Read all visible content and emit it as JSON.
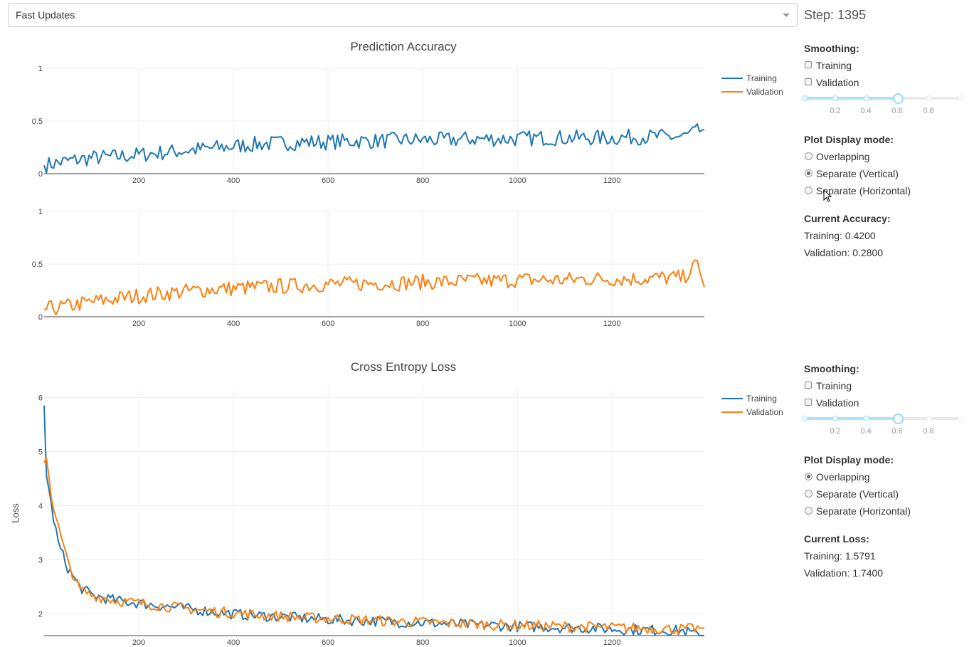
{
  "dropdown": {
    "value": "Fast Updates"
  },
  "step": "Step: 1395",
  "colors": {
    "training": "#1f77b4",
    "validation": "#ff7f0e",
    "grid": "#eeeeee",
    "axis": "#444444"
  },
  "accuracy_panel": {
    "smoothing_label": "Smoothing:",
    "training_label": "Training",
    "validation_label": "Validation",
    "slider_marks": [
      "0.2",
      "0.4",
      "0.6",
      "0.8"
    ],
    "slider_value": 0.6,
    "display_label": "Plot Display mode:",
    "modes": [
      "Overlapping",
      "Separate (Vertical)",
      "Separate (Horizontal)"
    ],
    "selected_mode": 1,
    "current_label": "Current Accuracy:",
    "training_value": "Training: 0.4200",
    "validation_value": "Validation: 0.2800"
  },
  "loss_panel": {
    "smoothing_label": "Smoothing:",
    "training_label": "Training",
    "validation_label": "Validation",
    "slider_marks": [
      "0.2",
      "0.4",
      "0.6",
      "0.8"
    ],
    "slider_value": 0.6,
    "display_label": "Plot Display mode:",
    "modes": [
      "Overlapping",
      "Separate (Vertical)",
      "Separate (Horizontal)"
    ],
    "selected_mode": 0,
    "current_label": "Current Loss:",
    "training_value": "Training: 1.5791",
    "validation_value": "Validation: 1.7400"
  },
  "chart_data": [
    {
      "type": "line",
      "title": "Prediction Accuracy",
      "legend": [
        "Training",
        "Validation"
      ],
      "legend_position": "top-right",
      "subplot": "Training",
      "xlim": [
        0,
        1395
      ],
      "ylim": [
        0,
        1
      ],
      "xticks": [
        "200",
        "400",
        "600",
        "800",
        "1000",
        "1200"
      ],
      "yticks": [
        "0",
        "0.5",
        "1"
      ],
      "series": [
        {
          "name": "Training",
          "x": [
            0,
            50,
            100,
            150,
            200,
            250,
            300,
            350,
            400,
            450,
            500,
            550,
            600,
            650,
            700,
            750,
            800,
            850,
            900,
            950,
            1000,
            1050,
            1100,
            1150,
            1200,
            1250,
            1300,
            1350,
            1380,
            1395
          ],
          "y": [
            0.08,
            0.12,
            0.15,
            0.16,
            0.18,
            0.2,
            0.22,
            0.24,
            0.26,
            0.28,
            0.29,
            0.3,
            0.3,
            0.31,
            0.31,
            0.32,
            0.32,
            0.32,
            0.33,
            0.33,
            0.33,
            0.34,
            0.34,
            0.34,
            0.34,
            0.35,
            0.35,
            0.35,
            0.4,
            0.42
          ]
        }
      ]
    },
    {
      "type": "line",
      "subplot": "Validation",
      "xlim": [
        0,
        1395
      ],
      "ylim": [
        0,
        1
      ],
      "xticks": [
        "200",
        "400",
        "600",
        "800",
        "1000",
        "1200"
      ],
      "yticks": [
        "0",
        "0.5",
        "1"
      ],
      "series": [
        {
          "name": "Validation",
          "x": [
            0,
            50,
            100,
            150,
            200,
            250,
            300,
            350,
            400,
            450,
            500,
            550,
            600,
            650,
            700,
            750,
            800,
            850,
            900,
            950,
            1000,
            1050,
            1100,
            1150,
            1200,
            1250,
            1300,
            1350,
            1380,
            1395
          ],
          "y": [
            0.07,
            0.1,
            0.14,
            0.17,
            0.2,
            0.22,
            0.24,
            0.26,
            0.27,
            0.28,
            0.29,
            0.3,
            0.31,
            0.31,
            0.32,
            0.32,
            0.33,
            0.33,
            0.34,
            0.34,
            0.35,
            0.35,
            0.35,
            0.36,
            0.36,
            0.36,
            0.37,
            0.37,
            0.5,
            0.28
          ]
        }
      ]
    },
    {
      "type": "line",
      "title": "Cross Entropy Loss",
      "ylabel": "Loss",
      "legend": [
        "Training",
        "Validation"
      ],
      "legend_position": "top-right",
      "xlim": [
        0,
        1395
      ],
      "ylim": [
        1.6,
        6.15
      ],
      "xticks": [
        "200",
        "400",
        "600",
        "800",
        "1000",
        "1200"
      ],
      "yticks": [
        "2",
        "3",
        "4",
        "5",
        "6"
      ],
      "series": [
        {
          "name": "Training",
          "x": [
            0,
            5,
            15,
            30,
            50,
            75,
            100,
            150,
            200,
            250,
            300,
            350,
            400,
            450,
            500,
            550,
            600,
            650,
            700,
            750,
            800,
            850,
            900,
            950,
            1000,
            1050,
            1100,
            1150,
            1200,
            1250,
            1300,
            1350,
            1395
          ],
          "y": [
            5.85,
            4.6,
            4.0,
            3.3,
            2.85,
            2.5,
            2.35,
            2.25,
            2.2,
            2.15,
            2.1,
            2.05,
            2.0,
            1.97,
            1.95,
            1.92,
            1.9,
            1.88,
            1.87,
            1.85,
            1.84,
            1.82,
            1.8,
            1.79,
            1.77,
            1.76,
            1.75,
            1.74,
            1.72,
            1.71,
            1.7,
            1.69,
            1.58
          ]
        },
        {
          "name": "Validation",
          "x": [
            0,
            5,
            15,
            30,
            50,
            75,
            100,
            150,
            200,
            250,
            300,
            350,
            400,
            450,
            500,
            550,
            600,
            650,
            700,
            750,
            800,
            850,
            900,
            950,
            1000,
            1050,
            1100,
            1150,
            1200,
            1250,
            1300,
            1350,
            1395
          ],
          "y": [
            4.8,
            4.9,
            4.2,
            3.6,
            2.95,
            2.45,
            2.35,
            2.25,
            2.2,
            2.15,
            2.1,
            2.05,
            2.02,
            1.98,
            1.96,
            1.93,
            1.92,
            1.9,
            1.88,
            1.86,
            1.85,
            1.83,
            1.82,
            1.8,
            1.79,
            1.78,
            1.77,
            1.76,
            1.75,
            1.74,
            1.73,
            1.72,
            1.74
          ]
        }
      ]
    }
  ]
}
